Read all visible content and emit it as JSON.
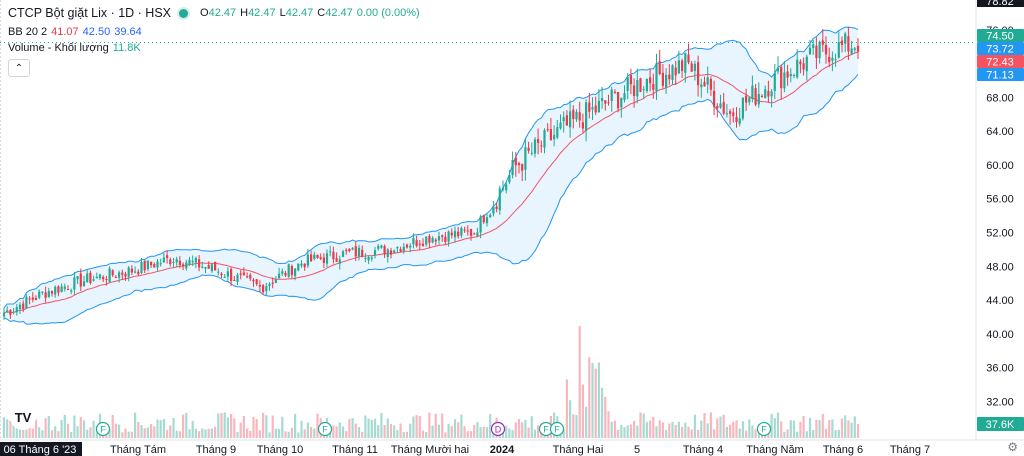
{
  "header": {
    "symbol_title": "CTCP Bột giặt Lix · 1D · HSX",
    "ohlc": {
      "o_label": "O",
      "o": "42.47",
      "h_label": "H",
      "h": "42.47",
      "l_label": "L",
      "l": "42.47",
      "c_label": "C",
      "c": "42.47",
      "change": "0.00 (0.00%)"
    },
    "bb": {
      "label": "BB 20 2",
      "basis": "41.07",
      "upper": "42.50",
      "lower": "39.64"
    },
    "volume": {
      "label": "Volume - Khối lượng",
      "value": "11.8K"
    }
  },
  "colors": {
    "up": "#22ab94",
    "down": "#f23645",
    "basis": "#f7525f",
    "band": "#2196f3",
    "band_fill": "rgba(33,150,243,0.1)",
    "vol_up": "#a6dbd1",
    "vol_down": "#f9b7bd"
  },
  "icons": {
    "collapse": "chevron-up-icon",
    "logo": "tradingview-logo-icon",
    "settings": "gear-icon"
  },
  "logo_text": "TV",
  "chart_data": {
    "type": "candlestick",
    "y_axis": {
      "ticks": [
        "76.00",
        "72.00",
        "68.00",
        "64.00",
        "60.00",
        "56.00",
        "52.00",
        "48.00",
        "44.00",
        "40.00",
        "36.00",
        "32.00"
      ],
      "top_label": "78.82",
      "range": [
        29.8,
        78.82
      ]
    },
    "price_labels": [
      {
        "text": "74.50",
        "value": 74.5,
        "color": "#22ab94"
      },
      {
        "text": "73.72",
        "value": 73.72,
        "color": "#2196f3"
      },
      {
        "text": "72.43",
        "value": 72.43,
        "color": "#f7525f"
      },
      {
        "text": "71.13",
        "value": 71.13,
        "color": "#2196f3"
      }
    ],
    "volume_label": {
      "text": "37.6K",
      "color": "#22ab94"
    },
    "x_axis": {
      "labels": [
        "06 Tháng 6 '23",
        "Tháng Tám",
        "Tháng 9",
        "Tháng 10",
        "Tháng 11",
        "Tháng Mười hai",
        "2024",
        "Tháng Hai",
        "5",
        "Tháng 4",
        "Tháng Năm",
        "Tháng 6",
        "Tháng 7"
      ]
    },
    "event_markers": [
      "F",
      "F",
      "D",
      "F",
      "F",
      "F"
    ],
    "series": {
      "close_checkpoints": [
        42.5,
        45.0,
        46.5,
        47.5,
        49.0,
        47.5,
        45.5,
        48.5,
        49.5,
        50.0,
        51.5,
        52.0,
        60.0,
        64.0,
        67.0,
        70.0,
        72.0,
        66.0,
        70.0,
        73.0,
        74.5
      ],
      "notes": "Daily candles with 20-period Bollinger Bands (basis, upper, lower)"
    }
  }
}
